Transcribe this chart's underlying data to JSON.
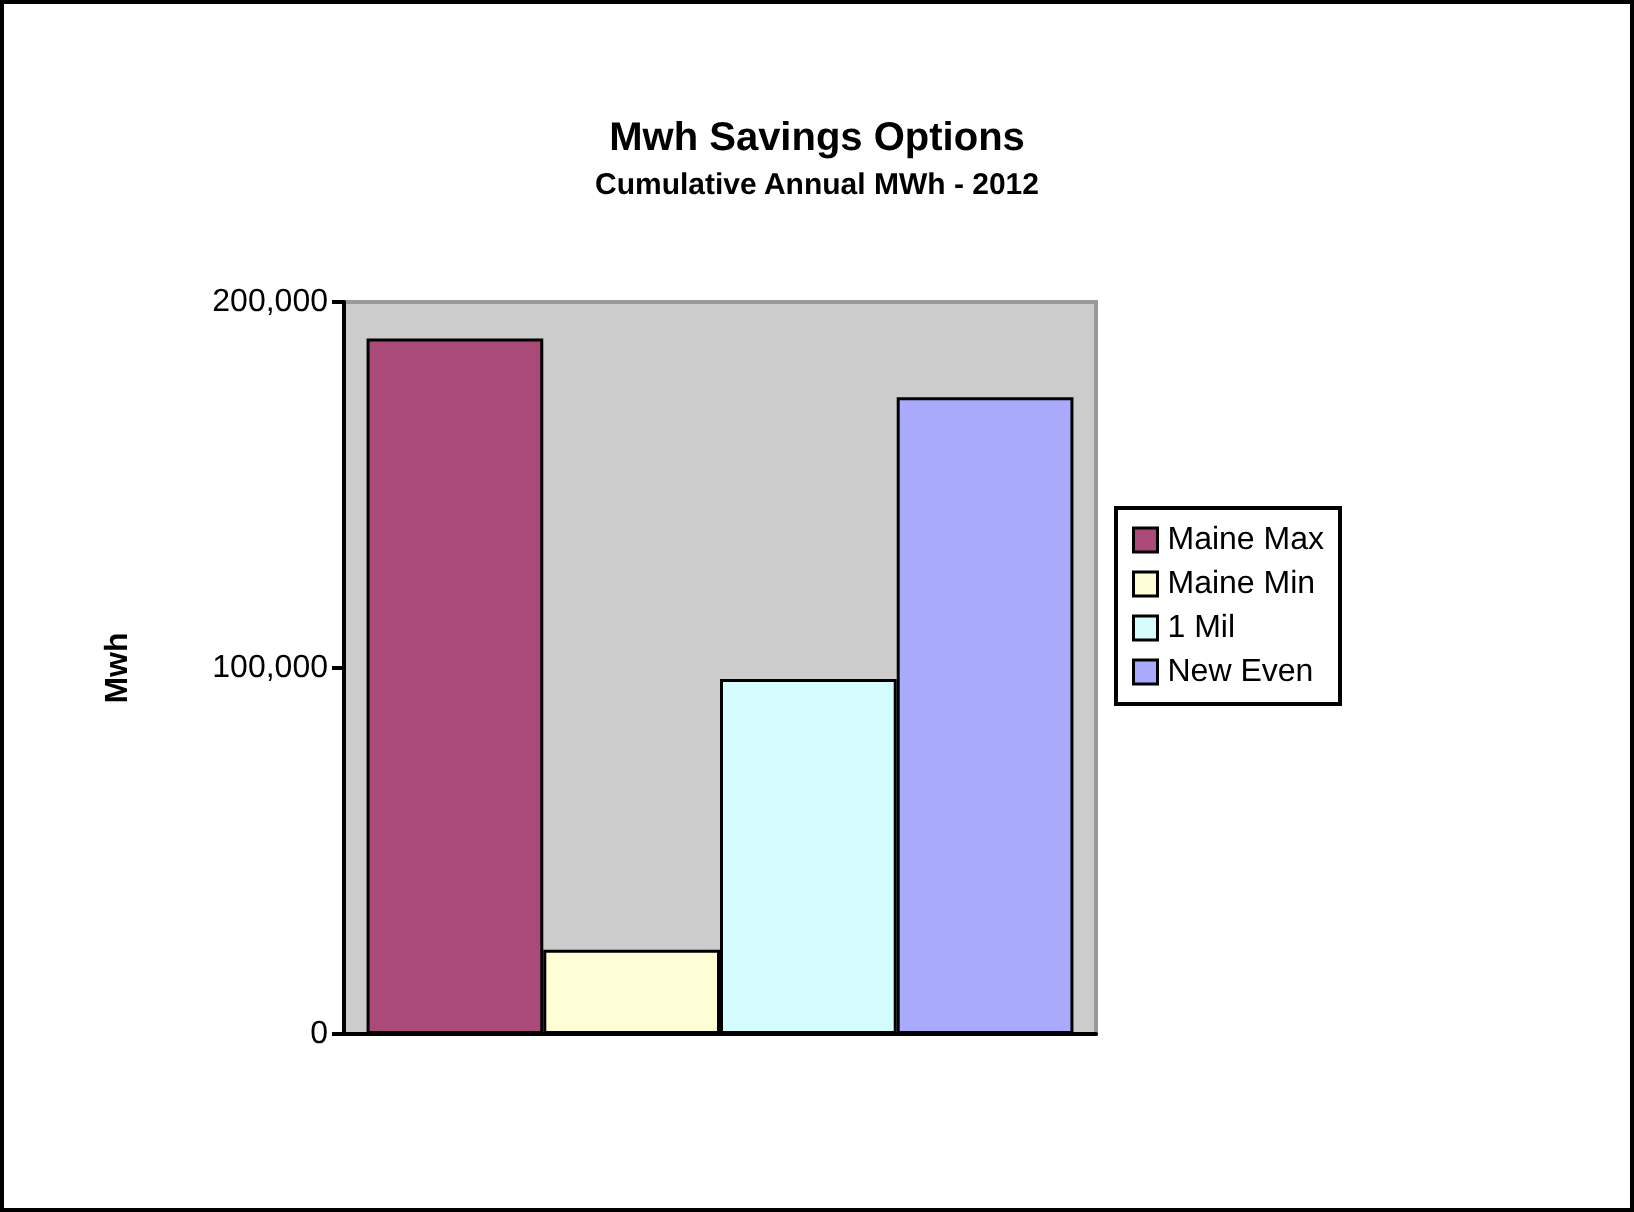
{
  "chart_data": {
    "type": "bar",
    "title": "Mwh Savings Options",
    "subtitle": "Cumulative Annual MWh - 2012",
    "ylabel": "Mwh",
    "categories": [
      null
    ],
    "series": [
      {
        "name": "Maine Max",
        "color": "#aa4a78",
        "values": [
          190000
        ]
      },
      {
        "name": "Maine Min",
        "color": "#fdfdd6",
        "values": [
          23000
        ]
      },
      {
        "name": "1 Mil",
        "color": "#d6fdfd",
        "values": [
          97000
        ]
      },
      {
        "name": "New Even",
        "color": "#aaaafd",
        "values": [
          174000
        ]
      }
    ],
    "ylim": [
      0,
      200000
    ],
    "yticks": [
      0,
      {
        "value": 100000,
        "label": "100,000"
      },
      {
        "value": 200000,
        "label": "200,000"
      }
    ],
    "grid": false,
    "legend": "right"
  }
}
